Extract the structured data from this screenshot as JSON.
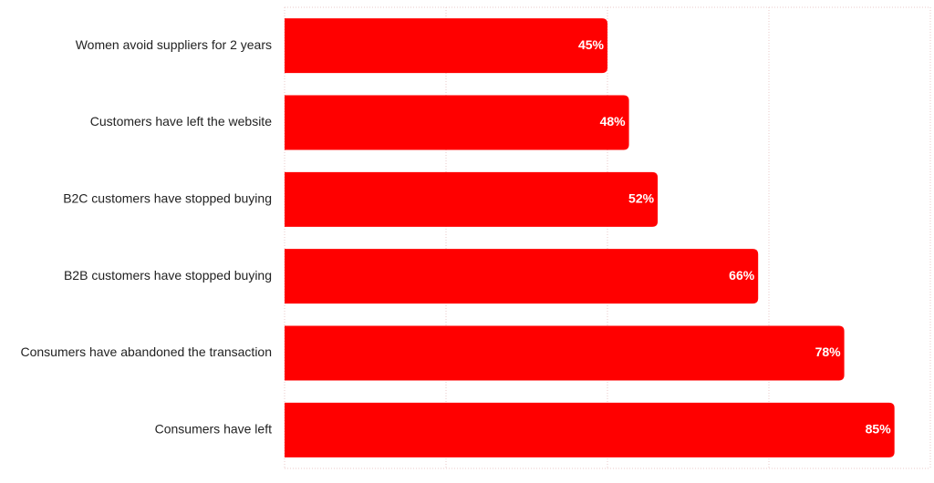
{
  "chart_data": {
    "type": "bar",
    "orientation": "horizontal",
    "categories": [
      "Women avoid suppliers for 2 years",
      "Customers have left the website",
      "B2C customers have stopped buying",
      "B2B customers have stopped buying",
      "Consumers have abandoned the transaction",
      "Consumers have left"
    ],
    "values": [
      45,
      48,
      52,
      66,
      78,
      85
    ],
    "value_labels": [
      "45%",
      "48%",
      "52%",
      "66%",
      "78%",
      "85%"
    ],
    "color": "#ff0000",
    "xlim": [
      0,
      90
    ],
    "xticks": [
      0,
      22.5,
      45,
      67.5,
      90
    ],
    "grid": true
  }
}
